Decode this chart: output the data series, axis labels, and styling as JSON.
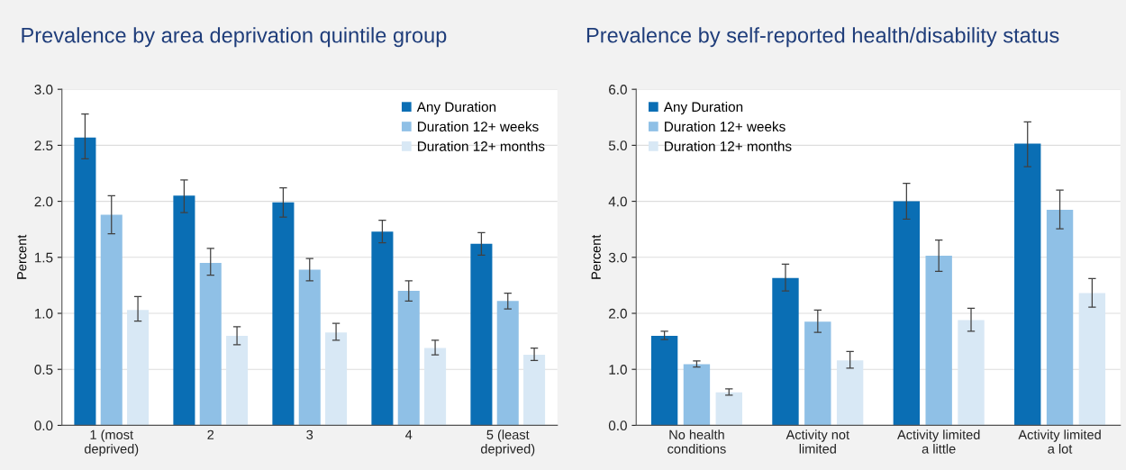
{
  "chart_data": [
    {
      "type": "bar",
      "title": "Prevalence by area deprivation quintile group",
      "ylabel": "Percent",
      "categories": [
        "1 (most\ndeprived)",
        "2",
        "3",
        "4",
        "5 (least\ndeprived)"
      ],
      "series": [
        {
          "name": "Any Duration",
          "color": "#0a6eb4",
          "values": [
            2.57,
            2.05,
            1.99,
            1.73,
            1.62
          ],
          "errors": [
            [
              2.38,
              2.78
            ],
            [
              1.9,
              2.19
            ],
            [
              1.86,
              2.12
            ],
            [
              1.63,
              1.83
            ],
            [
              1.52,
              1.72
            ]
          ]
        },
        {
          "name": "Duration 12+ weeks",
          "color": "#8fc0e6",
          "values": [
            1.88,
            1.45,
            1.39,
            1.2,
            1.11
          ],
          "errors": [
            [
              1.71,
              2.05
            ],
            [
              1.34,
              1.58
            ],
            [
              1.29,
              1.49
            ],
            [
              1.11,
              1.29
            ],
            [
              1.04,
              1.18
            ]
          ]
        },
        {
          "name": "Duration 12+ months",
          "color": "#d8e8f5",
          "values": [
            1.03,
            0.8,
            0.83,
            0.69,
            0.63
          ],
          "errors": [
            [
              0.93,
              1.15
            ],
            [
              0.72,
              0.88
            ],
            [
              0.76,
              0.91
            ],
            [
              0.63,
              0.76
            ],
            [
              0.58,
              0.69
            ]
          ]
        }
      ],
      "ylim": [
        0,
        3
      ],
      "yticks": [
        {
          "value": 0,
          "label": "0.0"
        },
        {
          "value": 0.5,
          "label": "0.5"
        },
        {
          "value": 1,
          "label": "1.0"
        },
        {
          "value": 1.5,
          "label": "1.5"
        },
        {
          "value": 2,
          "label": "2.0"
        },
        {
          "value": 2.5,
          "label": "2.5"
        },
        {
          "value": 3,
          "label": "3.0"
        }
      ],
      "grid": "y",
      "legend": "top right"
    },
    {
      "type": "bar",
      "title": "Prevalence by self-reported health/disability status",
      "ylabel": "Percent",
      "categories": [
        "No health\nconditions",
        "Activity not\nlimited",
        "Activity limited\na little",
        "Activity limited\na lot"
      ],
      "series": [
        {
          "name": "Any Duration",
          "color": "#0a6eb4",
          "values": [
            1.6,
            2.63,
            4.0,
            5.03
          ],
          "errors": [
            [
              1.53,
              1.68
            ],
            [
              2.4,
              2.88
            ],
            [
              3.68,
              4.32
            ],
            [
              4.62,
              5.42
            ]
          ]
        },
        {
          "name": "Duration 12+ weeks",
          "color": "#8fc0e6",
          "values": [
            1.09,
            1.85,
            3.03,
            3.85
          ],
          "errors": [
            [
              1.04,
              1.15
            ],
            [
              1.66,
              2.06
            ],
            [
              2.75,
              3.31
            ],
            [
              3.51,
              4.2
            ]
          ]
        },
        {
          "name": "Duration 12+ months",
          "color": "#d8e8f5",
          "values": [
            0.59,
            1.16,
            1.88,
            2.36
          ],
          "errors": [
            [
              0.54,
              0.65
            ],
            [
              1.02,
              1.32
            ],
            [
              1.68,
              2.09
            ],
            [
              2.11,
              2.62
            ]
          ]
        }
      ],
      "ylim": [
        0,
        6
      ],
      "yticks": [
        {
          "value": 0,
          "label": "0.0"
        },
        {
          "value": 1,
          "label": "1.0"
        },
        {
          "value": 2,
          "label": "2.0"
        },
        {
          "value": 3,
          "label": "3.0"
        },
        {
          "value": 4,
          "label": "4.0"
        },
        {
          "value": 5,
          "label": "5.0"
        },
        {
          "value": 6,
          "label": "6.0"
        }
      ],
      "grid": "y",
      "legend": "top left"
    }
  ]
}
